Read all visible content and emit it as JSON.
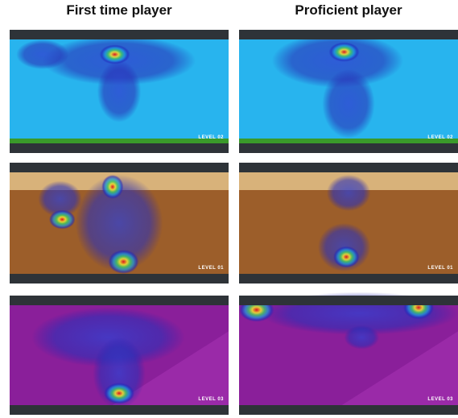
{
  "columns": [
    "First time player",
    "Proficient player"
  ],
  "rows": [
    {
      "panels": [
        {
          "level": "LEVEL 02"
        },
        {
          "level": "LEVEL 02"
        }
      ]
    },
    {
      "panels": [
        {
          "level": "LEVEL 01"
        },
        {
          "level": "LEVEL 01"
        }
      ]
    },
    {
      "panels": [
        {
          "level": "LEVEL 03"
        },
        {
          "level": "LEVEL 03"
        }
      ]
    }
  ]
}
